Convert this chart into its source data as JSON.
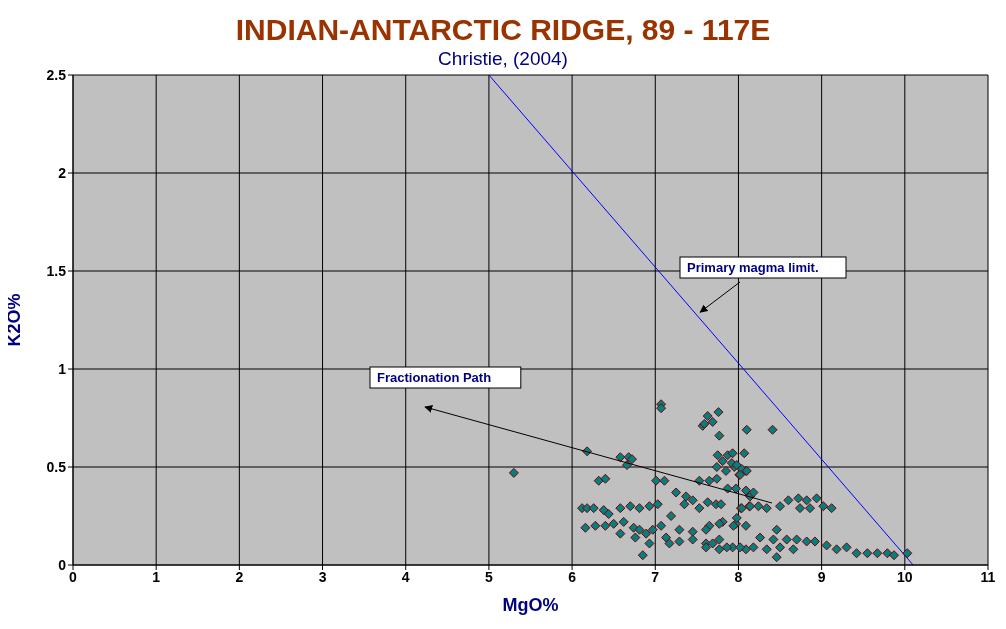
{
  "chart_data": {
    "type": "scatter",
    "title": "INDIAN-ANTARCTIC RIDGE, 89 - 117E",
    "subtitle": "Christie, (2004)",
    "xlabel": "MgO%",
    "ylabel": "K2O%",
    "xlim": [
      0,
      11
    ],
    "xticks": [
      0,
      1,
      2,
      3,
      4,
      5,
      6,
      7,
      8,
      9,
      10,
      11
    ],
    "ylim": [
      0,
      2.5
    ],
    "yticks": [
      0,
      0.5,
      1,
      1.5,
      2,
      2.5
    ],
    "grid": true,
    "legend": false,
    "marker": "diamond",
    "annotations": [
      {
        "text": "Primary magma limit.",
        "x": 7.54,
        "y": 1.29
      },
      "Fractionation Path"
    ],
    "series": [
      {
        "color": "#008080",
        "x": [
          5.3,
          6.18,
          6.58,
          6.68,
          6.72,
          6.66,
          6.32,
          6.4,
          7.07,
          7.07,
          7.01,
          7.11,
          7.25,
          7.57,
          7.63,
          7.69,
          7.76,
          7.77,
          7.75,
          7.87,
          7.93,
          8.07,
          7.74,
          7.85,
          7.95,
          8.01,
          8.09,
          7.53,
          7.65,
          7.74,
          7.37,
          7.45,
          7.35,
          7.53,
          7.63,
          7.73,
          7.79,
          7.87,
          7.97,
          8.09,
          6.12,
          6.18,
          6.26,
          6.38,
          6.44,
          6.58,
          6.7,
          6.81,
          6.93,
          7.03,
          6.16,
          6.28,
          6.4,
          6.5,
          6.62,
          6.58,
          6.74,
          6.81,
          6.89,
          6.97,
          7.07,
          7.19,
          6.76,
          6.93,
          6.85,
          7.13,
          7.29,
          7.45,
          7.65,
          7.81,
          7.97,
          8.09,
          7.29,
          7.45,
          7.61,
          7.77,
          7.93,
          8.09,
          7.17,
          7.77,
          8.03,
          8.13,
          7.59,
          8.1,
          8.41,
          7.81,
          7.92,
          7.98,
          8.04,
          8.1,
          8.02,
          8.14,
          8.18,
          8.04,
          8.14,
          8.24,
          8.34,
          8.5,
          8.6,
          8.72,
          8.82,
          8.94,
          8.74,
          8.86,
          9.02,
          9.12,
          8.46,
          8.26,
          8.42,
          8.58,
          8.7,
          8.82,
          8.92,
          9.06,
          9.18,
          9.3,
          9.42,
          9.55,
          9.67,
          9.79,
          9.87,
          10.03,
          8.18,
          8.34,
          8.5,
          8.66,
          8.46,
          7.61,
          7.77,
          7.94,
          7.69,
          7.86,
          8.02,
          7.61,
          7.98
        ],
        "values": [
          0.47,
          0.58,
          0.55,
          0.55,
          0.54,
          0.51,
          0.43,
          0.44,
          0.82,
          0.8,
          0.43,
          0.43,
          0.37,
          0.71,
          0.76,
          0.73,
          0.78,
          0.66,
          0.56,
          0.56,
          0.57,
          0.57,
          0.5,
          0.48,
          0.5,
          0.46,
          0.48,
          0.43,
          0.43,
          0.44,
          0.35,
          0.33,
          0.31,
          0.29,
          0.32,
          0.31,
          0.31,
          0.39,
          0.39,
          0.38,
          0.29,
          0.29,
          0.29,
          0.28,
          0.26,
          0.29,
          0.3,
          0.29,
          0.3,
          0.31,
          0.19,
          0.2,
          0.2,
          0.21,
          0.22,
          0.16,
          0.19,
          0.18,
          0.16,
          0.18,
          0.2,
          0.25,
          0.14,
          0.11,
          0.05,
          0.14,
          0.18,
          0.17,
          0.2,
          0.22,
          0.21,
          0.2,
          0.12,
          0.13,
          0.11,
          0.13,
          0.09,
          0.08,
          0.11,
          0.08,
          0.29,
          0.3,
          0.72,
          0.69,
          0.69,
          0.53,
          0.52,
          0.51,
          0.49,
          0.48,
          0.46,
          0.35,
          0.37,
          0.29,
          0.3,
          0.3,
          0.29,
          0.3,
          0.33,
          0.34,
          0.33,
          0.34,
          0.29,
          0.29,
          0.3,
          0.29,
          0.18,
          0.14,
          0.13,
          0.13,
          0.13,
          0.12,
          0.12,
          0.1,
          0.08,
          0.09,
          0.06,
          0.06,
          0.06,
          0.06,
          0.05,
          0.06,
          0.09,
          0.08,
          0.09,
          0.08,
          0.04,
          0.18,
          0.21,
          0.2,
          0.11,
          0.09,
          0.09,
          0.09,
          0.24
        ]
      },
      {
        "type": "line",
        "color": "#0000ff",
        "marker": "none",
        "x": [
          5,
          10.1
        ],
        "values": [
          2.5,
          0
        ]
      }
    ]
  }
}
